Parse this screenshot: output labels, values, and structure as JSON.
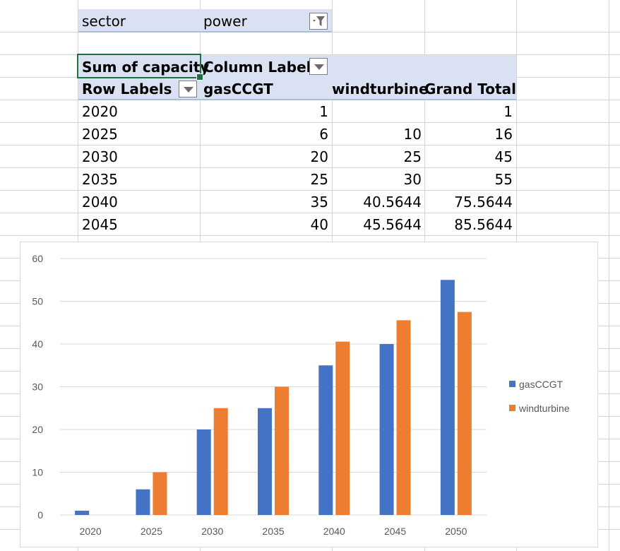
{
  "filter": {
    "field": "sector",
    "value": "power"
  },
  "pivot": {
    "value_header": "Sum of capacity",
    "column_labels": "Column Labels",
    "row_labels": "Row Labels",
    "columns": [
      "gasCCGT",
      "windturbine",
      "Grand Total"
    ],
    "rows": [
      {
        "year": "2020",
        "gasCCGT": "1",
        "windturbine": "",
        "total": "1"
      },
      {
        "year": "2025",
        "gasCCGT": "6",
        "windturbine": "10",
        "total": "16"
      },
      {
        "year": "2030",
        "gasCCGT": "20",
        "windturbine": "25",
        "total": "45"
      },
      {
        "year": "2035",
        "gasCCGT": "25",
        "windturbine": "30",
        "total": "55"
      },
      {
        "year": "2040",
        "gasCCGT": "35",
        "windturbine": "40.5644",
        "total": "75.5644"
      },
      {
        "year": "2045",
        "gasCCGT": "40",
        "windturbine": "45.5644",
        "total": "85.5644"
      }
    ]
  },
  "colors": {
    "gasCCGT": "#4472c4",
    "windturbine": "#ed7d31",
    "pivot_header": "#d9e1f2",
    "selection": "#1e7145"
  },
  "chart_data": {
    "type": "bar",
    "categories": [
      "2020",
      "2025",
      "2030",
      "2035",
      "2040",
      "2045",
      "2050"
    ],
    "series": [
      {
        "name": "gasCCGT",
        "values": [
          1,
          6,
          20,
          25,
          35,
          40,
          55
        ]
      },
      {
        "name": "windturbine",
        "values": [
          0,
          10,
          25,
          30,
          40.5644,
          45.5644,
          47.5
        ]
      }
    ],
    "y_ticks": [
      "0",
      "10",
      "20",
      "30",
      "40",
      "50",
      "60"
    ],
    "ylim": [
      0,
      60
    ],
    "grid": true,
    "legend_position": "right"
  }
}
